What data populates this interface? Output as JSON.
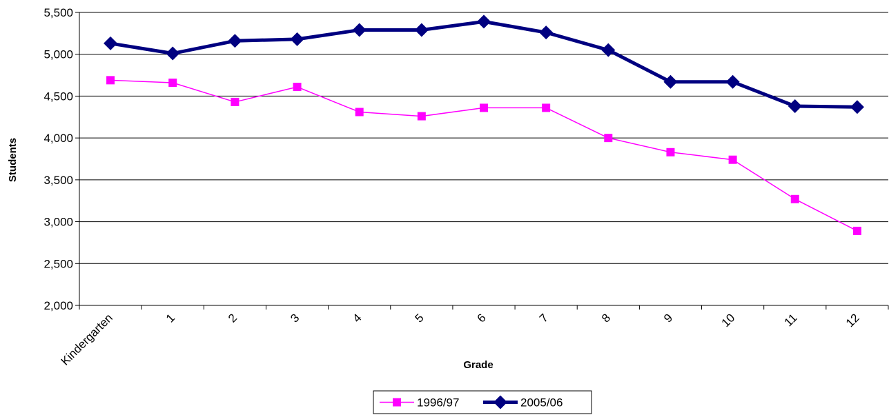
{
  "chart_data": {
    "type": "line",
    "title": "",
    "xlabel": "Grade",
    "ylabel": "Students",
    "ylim": [
      2000,
      5500
    ],
    "yticks": [
      2000,
      2500,
      3000,
      3500,
      4000,
      4500,
      5000,
      5500
    ],
    "ytick_labels": [
      "2,000",
      "2,500",
      "3,000",
      "3,500",
      "4,000",
      "4,500",
      "5,000",
      "5,500"
    ],
    "categories": [
      "Kindergarten",
      "1",
      "2",
      "3",
      "4",
      "5",
      "6",
      "7",
      "8",
      "9",
      "10",
      "11",
      "12"
    ],
    "grid": "horizontal",
    "legend_position": "bottom",
    "series": [
      {
        "name": "1996/97",
        "color": "#FF00FF",
        "marker": "square",
        "values": [
          4690,
          4660,
          4430,
          4610,
          4310,
          4260,
          4360,
          4360,
          4000,
          3830,
          3740,
          3270,
          2890
        ]
      },
      {
        "name": "2005/06",
        "color": "#000080",
        "marker": "diamond",
        "values": [
          5130,
          5010,
          5160,
          5180,
          5290,
          5290,
          5390,
          5260,
          5050,
          4670,
          4670,
          4380,
          4370
        ]
      }
    ]
  }
}
